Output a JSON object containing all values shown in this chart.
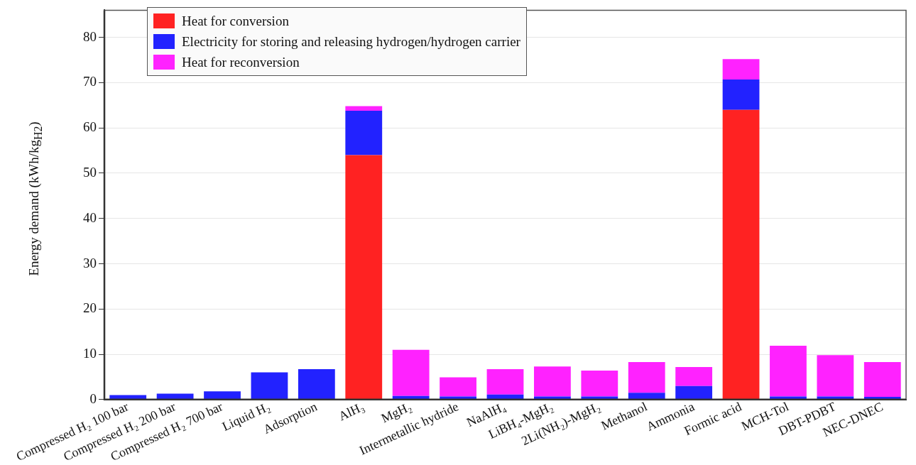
{
  "chart_data": {
    "type": "bar",
    "stacked": true,
    "ylabel": "Energy demand (kWh/kg$_{H2}$)",
    "categories": [
      "Compressed H₂ 100 bar",
      "Compressed H₂ 200 bar",
      "Compressed H₂ 700 bar",
      "Liquid H₂",
      "Adsorption",
      "AlH₃",
      "MgH₂",
      "Intermetallic hydride",
      "NaAlH₄",
      "LiBH₄-MgH₂",
      "2Li(NH₂)-MgH₂",
      "Methanol",
      "Ammonia",
      "Formic acid",
      "MCH-Tol",
      "DBT-PDBT",
      "NEC-DNEC"
    ],
    "series": [
      {
        "name": "Heat for conversion",
        "color": "#ff2222",
        "values": [
          0,
          0,
          0,
          0,
          0,
          54,
          0,
          0,
          0,
          0,
          0,
          0,
          0,
          64,
          0,
          0,
          0
        ]
      },
      {
        "name": "Electricity for storing and releasing hydrogen/hydrogen carrier",
        "color": "#2222ff",
        "values": [
          1.0,
          1.3,
          1.8,
          6.0,
          6.7,
          9.8,
          0.8,
          0.7,
          1.1,
          0.7,
          0.7,
          1.5,
          3.0,
          6.7,
          0.7,
          0.7,
          0.6
        ]
      },
      {
        "name": "Heat for reconversion",
        "color": "#ff22ff",
        "values": [
          0,
          0,
          0,
          0,
          0,
          1.0,
          10.2,
          4.2,
          5.6,
          6.6,
          5.7,
          6.8,
          4.2,
          4.5,
          11.2,
          9.1,
          7.7
        ]
      }
    ],
    "ylim": [
      0,
      86
    ],
    "yticks": [
      0,
      10,
      20,
      30,
      40,
      50,
      60,
      70,
      80
    ],
    "grid": "y",
    "legend": "top left"
  }
}
